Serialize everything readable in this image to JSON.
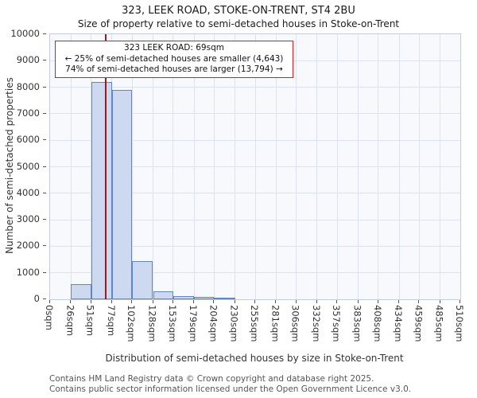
{
  "title": "323, LEEK ROAD, STOKE-ON-TRENT, ST4 2BU",
  "subtitle": "Size of property relative to semi-detached houses in Stoke-on-Trent",
  "annotation": {
    "line1": "323 LEEK ROAD: 69sqm",
    "line2": "← 25% of semi-detached houses are smaller (4,643)",
    "line3": "74% of semi-detached houses are larger (13,794) →"
  },
  "footer": {
    "line1": "Contains HM Land Registry data © Crown copyright and database right 2025.",
    "line2": "Contains public sector information licensed under the Open Government Licence v3.0."
  },
  "colors": {
    "bar_fill": "#ccd9f1",
    "bar_stroke": "#5d88c4",
    "marker_line": "#9e1a1a",
    "annotation_border": "#cc2222",
    "grid": "#dbe3f2",
    "plot_background": "#f8f9fd"
  },
  "chart_data": {
    "type": "bar",
    "title": "323, LEEK ROAD, STOKE-ON-TRENT, ST4 2BU",
    "subtitle": "Size of property relative to semi-detached houses in Stoke-on-Trent",
    "xlabel": "Distribution of semi-detached houses by size in Stoke-on-Trent",
    "ylabel": "Number of semi-detached properties",
    "x_tick_labels": [
      "0sqm",
      "26sqm",
      "51sqm",
      "77sqm",
      "102sqm",
      "128sqm",
      "153sqm",
      "179sqm",
      "204sqm",
      "230sqm",
      "255sqm",
      "281sqm",
      "306sqm",
      "332sqm",
      "357sqm",
      "383sqm",
      "408sqm",
      "434sqm",
      "459sqm",
      "485sqm",
      "510sqm"
    ],
    "bin_edges": [
      0,
      26,
      51,
      77,
      102,
      128,
      153,
      179,
      204,
      230,
      255,
      281,
      306,
      332,
      357,
      383,
      408,
      434,
      459,
      485,
      510
    ],
    "values": [
      0,
      570,
      8200,
      7900,
      1450,
      300,
      130,
      90,
      60,
      0,
      0,
      0,
      0,
      0,
      0,
      0,
      0,
      0,
      0,
      0
    ],
    "y_ticks": [
      0,
      1000,
      2000,
      3000,
      4000,
      5000,
      6000,
      7000,
      8000,
      9000,
      10000
    ],
    "ylim": [
      0,
      10000
    ],
    "xlim": [
      0,
      510
    ],
    "marker_value": 69,
    "marker_label": "323 LEEK ROAD: 69sqm",
    "grid": true,
    "legend": "none"
  }
}
